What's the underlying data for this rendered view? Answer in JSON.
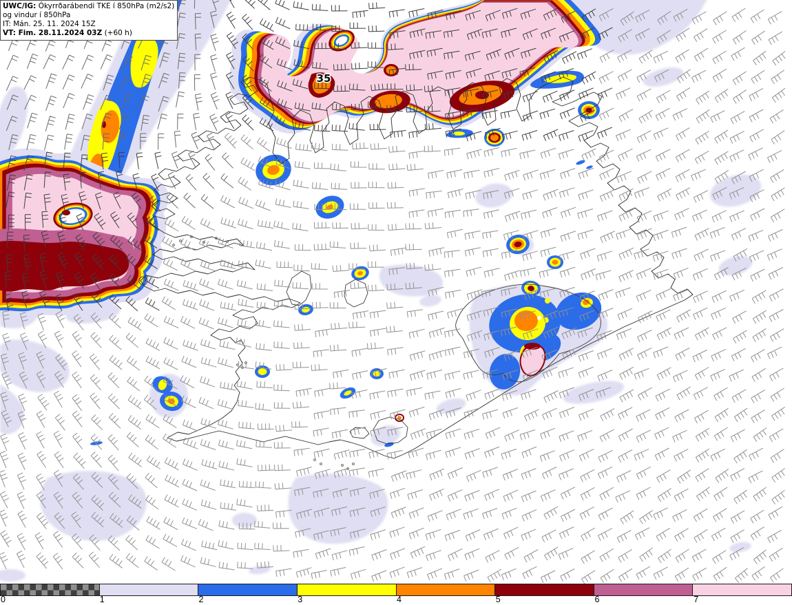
{
  "header": {
    "line1_bold": "UWC/IG:",
    "line1_rest": " Ókyrrðarábendi TKE í 850hPa (m2/s2)",
    "line2": "og vindur í 850hPa",
    "line3": "IT: Mán. 25. 11. 2024 15Z",
    "line4_bold": "VT: Fim. 28.11.2024 03Z",
    "line4_rest": " (+60 h)"
  },
  "map": {
    "intensity_label": "35"
  },
  "legend": {
    "ticks": [
      "0",
      "1",
      "2",
      "3",
      "4",
      "5",
      "6",
      "7"
    ],
    "segments": [
      "checker",
      "lavender",
      "blue",
      "yellow",
      "orange",
      "dark_red",
      "mauve",
      "pink"
    ]
  },
  "palette": {
    "lavender": "#dfdef2",
    "blue": "#2b6ce9",
    "yellow": "#ffff00",
    "orange": "#ff8400",
    "dark_red": "#8e000a",
    "mauve": "#c05f92",
    "pink": "#f8d2e3",
    "checker_dark": "#3f3f3f",
    "checker_light": "#8f8f8f",
    "coast": "#2a2a2a",
    "barb_light": "#909090",
    "barb_mid": "#6a6a6a",
    "barb_dark": "#3d3d3d"
  }
}
